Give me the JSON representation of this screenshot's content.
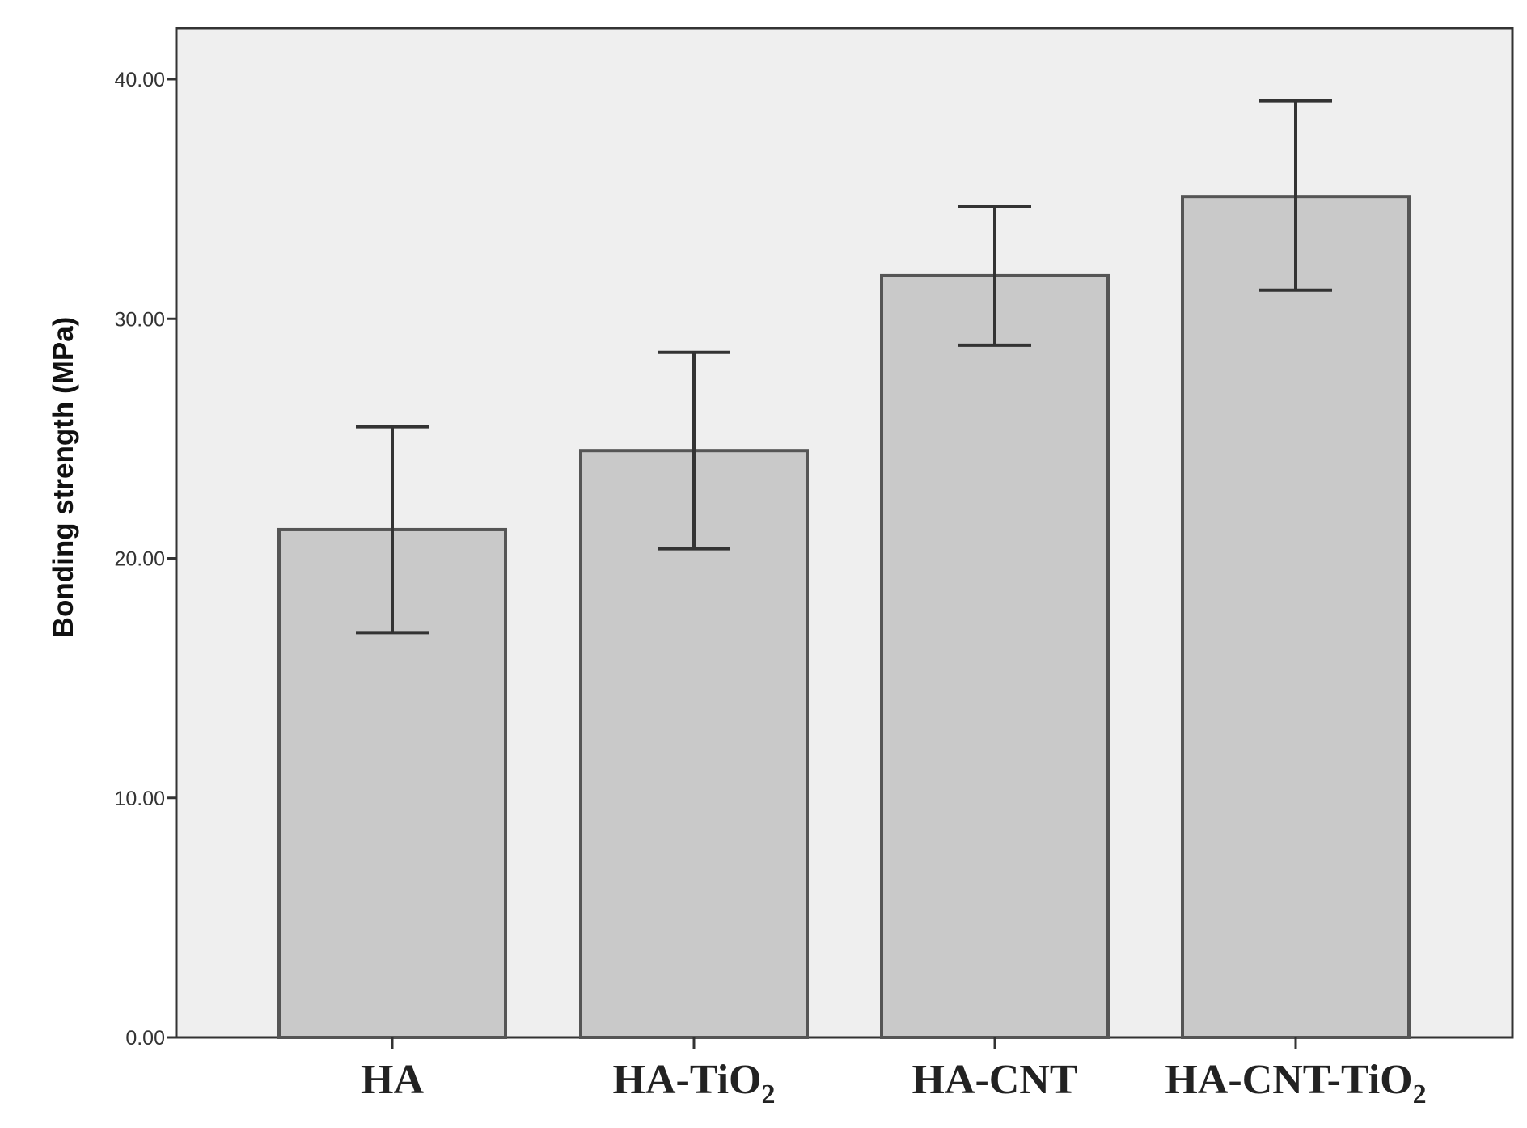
{
  "chart_data": {
    "type": "bar",
    "title": "",
    "xlabel": "",
    "ylabel": "Bonding strength (MPa)",
    "ylim": [
      0,
      42
    ],
    "grid": false,
    "yticks": [
      {
        "value": 0,
        "label": "0.00"
      },
      {
        "value": 10,
        "label": "10.00"
      },
      {
        "value": 20,
        "label": "20.00"
      },
      {
        "value": 30,
        "label": "30.00"
      },
      {
        "value": 40,
        "label": "40.00"
      }
    ],
    "categories": [
      {
        "base": "HA",
        "sub": ""
      },
      {
        "base": "HA-TiO",
        "sub": "2"
      },
      {
        "base": "HA-CNT",
        "sub": ""
      },
      {
        "base": "HA-CNT-TiO",
        "sub": "2"
      }
    ],
    "values": [
      21.2,
      24.5,
      31.8,
      35.1
    ],
    "error_lower": [
      16.9,
      20.4,
      28.9,
      31.2
    ],
    "error_upper": [
      25.5,
      28.6,
      34.7,
      39.1
    ],
    "colors": {
      "plot_background": "#efefef",
      "bar_fill": "#c9c9c9",
      "bar_stroke": "#555555",
      "axis": "#333333",
      "error_bar": "#333333"
    }
  }
}
